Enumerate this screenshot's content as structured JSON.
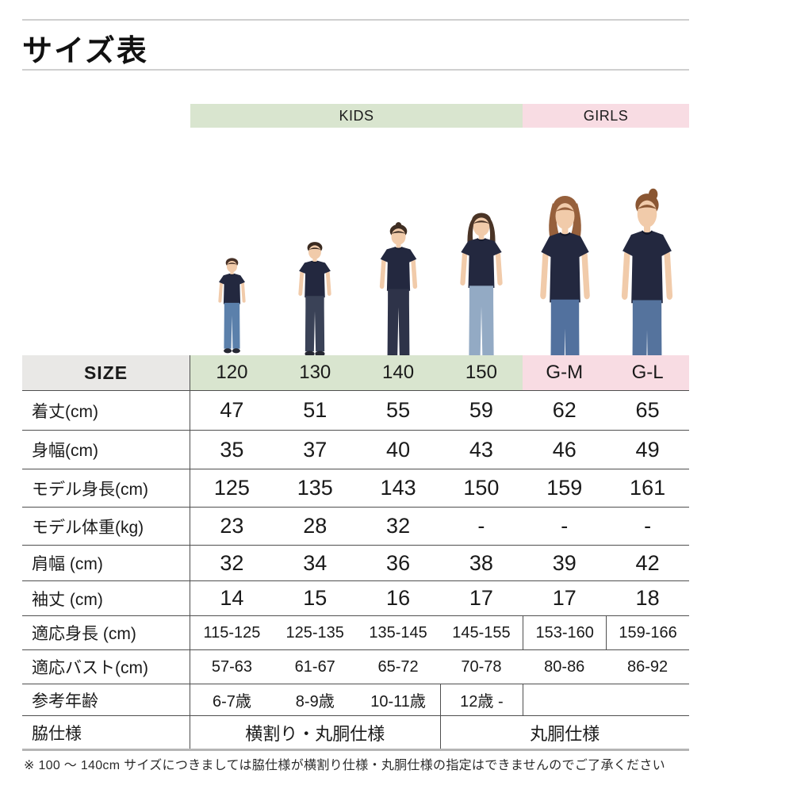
{
  "title": "サイズ表",
  "groups": {
    "kids": "KIDS",
    "girls": "GIRLS"
  },
  "colors": {
    "kids_bg": "#d9e5cf",
    "girls_bg": "#f8dce3",
    "size_label_bg": "#e9e8e6",
    "row_line": "#4f4f4f",
    "bottom_line": "#b5b5b5",
    "title_line": "#cfcfcf",
    "shirt_navy": "#23283f"
  },
  "table": {
    "type": "table",
    "size_label": "SIZE",
    "columns": [
      "120",
      "130",
      "140",
      "150",
      "G-M",
      "G-L"
    ],
    "column_groups": [
      "kids",
      "kids",
      "kids",
      "kids",
      "girls",
      "girls"
    ],
    "rows": [
      {
        "label": "着丈(cm)",
        "values": [
          "47",
          "51",
          "55",
          "59",
          "62",
          "65"
        ]
      },
      {
        "label": "身幅(cm)",
        "values": [
          "35",
          "37",
          "40",
          "43",
          "46",
          "49"
        ]
      },
      {
        "label": "モデル身長(cm)",
        "values": [
          "125",
          "135",
          "143",
          "150",
          "159",
          "161"
        ]
      },
      {
        "label": "モデル体重(kg)",
        "values": [
          "23",
          "28",
          "32",
          "-",
          "-",
          "-"
        ]
      },
      {
        "label": "肩幅 (cm)",
        "values": [
          "32",
          "34",
          "36",
          "38",
          "39",
          "42"
        ]
      },
      {
        "label": "袖丈 (cm)",
        "values": [
          "14",
          "15",
          "16",
          "17",
          "17",
          "18"
        ]
      },
      {
        "label": "適応身長 (cm)",
        "values": [
          "115-125",
          "125-135",
          "135-145",
          "145-155",
          "153-160",
          "159-166"
        ],
        "small": true,
        "dividers_before": [
          4,
          5
        ]
      },
      {
        "label": "適応バスト(cm)",
        "values": [
          "57-63",
          "61-67",
          "65-72",
          "70-78",
          "80-86",
          "86-92"
        ],
        "small": true
      },
      {
        "label": "参考年齢",
        "values": [
          "6-7歳",
          "8-9歳",
          "10-11歳",
          "12歳 -",
          "",
          ""
        ],
        "small": true,
        "dividers_before": [
          3,
          4
        ]
      },
      {
        "label": "脇仕様",
        "spans": [
          {
            "text": "横割り・丸胴仕様",
            "span": 3
          },
          {
            "text": "丸胴仕様",
            "span": 3
          }
        ]
      }
    ]
  },
  "models": [
    {
      "size": "120",
      "person": "boy",
      "hair_style": "short",
      "hair": "#463026",
      "skin": "#f1cbaa",
      "shirt": "#23283f",
      "pants": "#5b80ab"
    },
    {
      "size": "130",
      "person": "boy",
      "hair_style": "short",
      "hair": "#3a2a20",
      "skin": "#f1cbaa",
      "shirt": "#23283f",
      "pants": "#3a4257"
    },
    {
      "size": "140",
      "person": "girl",
      "hair_style": "bun-bangs",
      "hair": "#3f2e23",
      "skin": "#f1cbaa",
      "shirt": "#23283f",
      "pants": "#2e3349"
    },
    {
      "size": "150",
      "person": "girl",
      "hair_style": "long",
      "hair": "#4a3426",
      "skin": "#f1cbaa",
      "shirt": "#23283f",
      "pants": "#93aac4"
    },
    {
      "size": "G-M",
      "person": "woman",
      "hair_style": "bob",
      "hair": "#96603c",
      "skin": "#f1cbaa",
      "shirt": "#23283f",
      "pants": "#52719e"
    },
    {
      "size": "G-L",
      "person": "woman",
      "hair_style": "tied",
      "hair": "#8a5632",
      "skin": "#f1cbaa",
      "shirt": "#23283f",
      "pants": "#55739d"
    }
  ],
  "footnote": "※ 100 ～ 140cm サイズにつきましては脇仕様が横割り仕様・丸胴仕様の指定はできませんのでご了承ください"
}
